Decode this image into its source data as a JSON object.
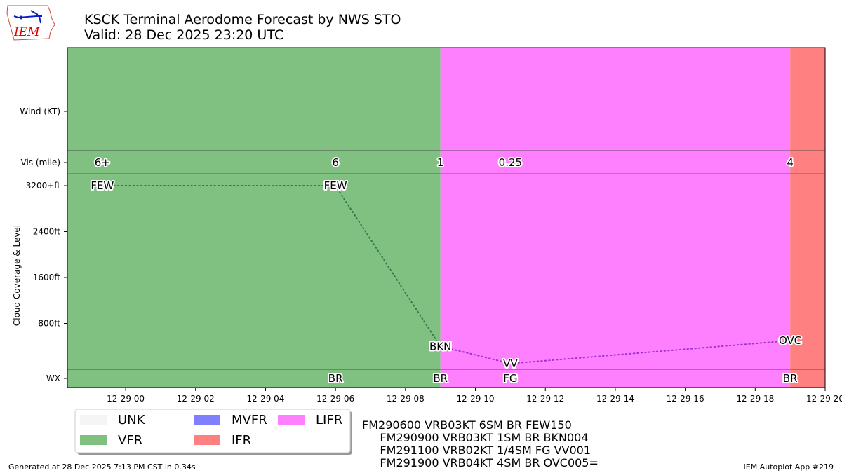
{
  "header": {
    "title": "KSCK Terminal Aerodome Forecast by NWS STO",
    "valid": "Valid: 28 Dec 2025 23:20 UTC",
    "logo_text": "IEM"
  },
  "chart_data": {
    "type": "timeline",
    "x_range": [
      "2025-12-28 22:20",
      "2025-12-29 20:00"
    ],
    "x_ticks": [
      {
        "t": "2025-12-29 00:00",
        "label": "12-29 00"
      },
      {
        "t": "2025-12-29 02:00",
        "label": "12-29 02"
      },
      {
        "t": "2025-12-29 04:00",
        "label": "12-29 04"
      },
      {
        "t": "2025-12-29 06:00",
        "label": "12-29 06"
      },
      {
        "t": "2025-12-29 08:00",
        "label": "12-29 08"
      },
      {
        "t": "2025-12-29 10:00",
        "label": "12-29 10"
      },
      {
        "t": "2025-12-29 12:00",
        "label": "12-29 12"
      },
      {
        "t": "2025-12-29 14:00",
        "label": "12-29 14"
      },
      {
        "t": "2025-12-29 16:00",
        "label": "12-29 16"
      },
      {
        "t": "2025-12-29 18:00",
        "label": "12-29 18"
      },
      {
        "t": "2025-12-29 20:00",
        "label": "12-29 20"
      }
    ],
    "row_labels": {
      "wind": "Wind (KT)",
      "vis": "Vis (mile)",
      "wx": "WX"
    },
    "ylabel": "Cloud Coverage & Level",
    "cloud_ticks": [
      {
        "ft": 3200,
        "label": "3200+ft"
      },
      {
        "ft": 2400,
        "label": "2400ft"
      },
      {
        "ft": 1600,
        "label": "1600ft"
      },
      {
        "ft": 800,
        "label": "800ft"
      }
    ],
    "cloud_ylim": [
      0,
      3200
    ],
    "categories": [
      {
        "start": "2025-12-28 22:20",
        "end": "2025-12-29 09:00",
        "cat": "VFR"
      },
      {
        "start": "2025-12-29 09:00",
        "end": "2025-12-29 19:00",
        "cat": "LIFR"
      },
      {
        "start": "2025-12-29 19:00",
        "end": "2025-12-29 20:00",
        "cat": "IFR"
      }
    ],
    "visibility": [
      {
        "t": "2025-12-28 23:20",
        "label": "6+"
      },
      {
        "t": "2025-12-29 06:00",
        "label": "6"
      },
      {
        "t": "2025-12-29 09:00",
        "label": "1"
      },
      {
        "t": "2025-12-29 11:00",
        "label": "0.25"
      },
      {
        "t": "2025-12-29 19:00",
        "label": "4"
      }
    ],
    "clouds": [
      {
        "t": "2025-12-28 23:20",
        "ft": 3200,
        "label": "FEW",
        "cat": "VFR"
      },
      {
        "t": "2025-12-29 06:00",
        "ft": 3200,
        "label": "FEW",
        "cat": "VFR"
      },
      {
        "t": "2025-12-29 09:00",
        "ft": 400,
        "label": "BKN",
        "cat": "LIFR"
      },
      {
        "t": "2025-12-29 11:00",
        "ft": 100,
        "label": "VV",
        "cat": "LIFR"
      },
      {
        "t": "2025-12-29 19:00",
        "ft": 500,
        "label": "OVC",
        "cat": "IFR"
      }
    ],
    "weather": [
      {
        "t": "2025-12-29 06:00",
        "label": "BR"
      },
      {
        "t": "2025-12-29 09:00",
        "label": "BR"
      },
      {
        "t": "2025-12-29 11:00",
        "label": "FG"
      },
      {
        "t": "2025-12-29 19:00",
        "label": "BR"
      }
    ],
    "legend": [
      {
        "label": "UNK",
        "color": "#f5f5f5"
      },
      {
        "label": "VFR",
        "color": "#80c080"
      },
      {
        "label": "MVFR",
        "color": "#8080ff"
      },
      {
        "label": "IFR",
        "color": "#ff8080"
      },
      {
        "label": "LIFR",
        "color": "#ff80ff"
      }
    ],
    "colors": {
      "VFR": "#80c080",
      "MVFR": "#8080ff",
      "IFR": "#ff8080",
      "LIFR": "#ff80ff",
      "UNK": "#f5f5f5",
      "vfr_line": "#2e7d4f",
      "lifr_line": "#a030d0"
    }
  },
  "taf_text": [
    "FM290600 VRB03KT 6SM BR FEW150",
    "     FM290900 VRB03KT 1SM BR BKN004",
    "     FM291100 VRB02KT 1/4SM FG VV001",
    "     FM291900 VRB04KT 4SM BR OVC005="
  ],
  "footer": {
    "generated": "Generated at 28 Dec 2025 7:13 PM CST in 0.34s",
    "app": "IEM Autoplot App #219"
  }
}
